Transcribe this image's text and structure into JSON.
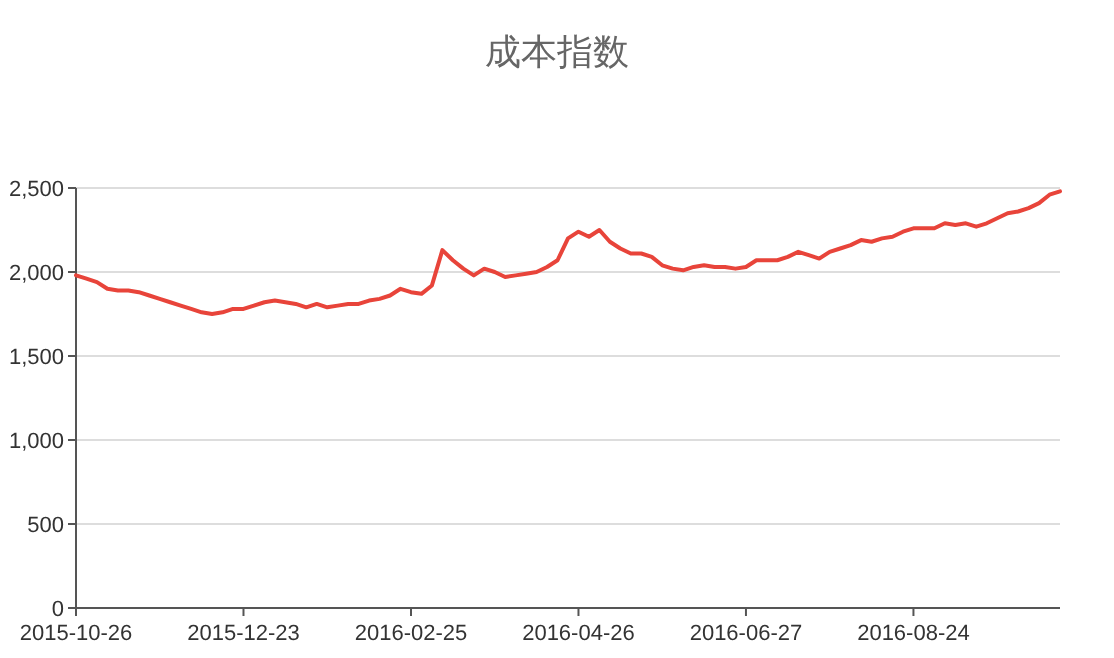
{
  "chart_data": {
    "type": "line",
    "title": "成本指数",
    "categories": [
      "2015-10-26",
      null,
      null,
      null,
      null,
      null,
      null,
      null,
      null,
      null,
      null,
      null,
      null,
      null,
      null,
      null,
      "2015-12-23",
      null,
      null,
      null,
      null,
      null,
      null,
      null,
      null,
      null,
      null,
      null,
      null,
      null,
      null,
      null,
      "2016-02-25",
      null,
      null,
      null,
      null,
      null,
      null,
      null,
      null,
      null,
      null,
      null,
      null,
      null,
      null,
      null,
      "2016-04-26",
      null,
      null,
      null,
      null,
      null,
      null,
      null,
      null,
      null,
      null,
      null,
      null,
      null,
      null,
      null,
      "2016-06-27",
      null,
      null,
      null,
      null,
      null,
      null,
      null,
      null,
      null,
      null,
      null,
      null,
      null,
      null,
      null,
      "2016-08-24",
      null,
      null,
      null,
      null,
      null,
      null,
      null,
      null,
      null,
      null,
      null,
      null,
      null,
      null
    ],
    "series": [
      {
        "color": "#e8443a",
        "values": [
          1980,
          1960,
          1940,
          1900,
          1890,
          1890,
          1880,
          1860,
          1840,
          1820,
          1800,
          1780,
          1760,
          1750,
          1760,
          1780,
          1780,
          1800,
          1820,
          1830,
          1820,
          1810,
          1790,
          1810,
          1790,
          1800,
          1810,
          1810,
          1830,
          1840,
          1860,
          1900,
          1880,
          1870,
          1920,
          2130,
          2070,
          2020,
          1980,
          2020,
          2000,
          1970,
          1980,
          1990,
          2000,
          2030,
          2070,
          2200,
          2240,
          2210,
          2250,
          2180,
          2140,
          2110,
          2110,
          2090,
          2040,
          2020,
          2010,
          2030,
          2040,
          2030,
          2030,
          2020,
          2030,
          2070,
          2070,
          2070,
          2090,
          2120,
          2100,
          2080,
          2120,
          2140,
          2160,
          2190,
          2180,
          2200,
          2210,
          2240,
          2260,
          2260,
          2260,
          2290,
          2280,
          2290,
          2270,
          2290,
          2320,
          2350,
          2360,
          2380,
          2410,
          2460,
          2480
        ]
      }
    ],
    "ylim": [
      0,
      2500
    ],
    "yticks": [
      0,
      500,
      {
        "value": 1000,
        "label": "1,000"
      },
      {
        "value": 1500,
        "label": "1,500"
      },
      {
        "value": 2000,
        "label": "2,000"
      },
      {
        "value": 2500,
        "label": "2,500"
      }
    ],
    "grid": "y"
  }
}
